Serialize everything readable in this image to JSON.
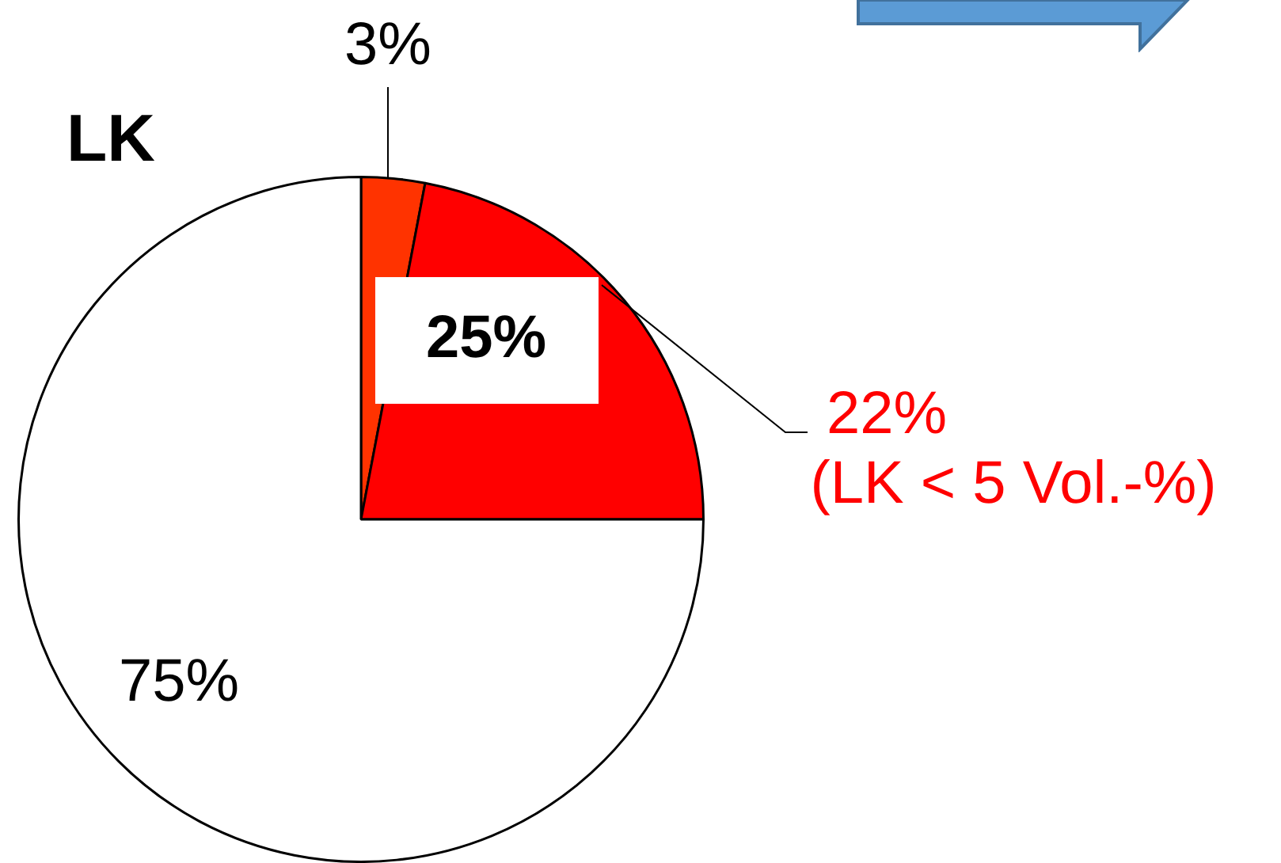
{
  "chart_data": {
    "type": "pie",
    "title": "LK",
    "categories": [
      null,
      null,
      null
    ],
    "values": [
      3,
      22,
      75
    ],
    "colors": [
      "#ff3300",
      "#ff0000",
      "#ffffff"
    ],
    "value_labels": [
      "3%",
      "22%",
      "75%"
    ],
    "annotations": [
      "25%",
      "(LK < 5 Vol.-%)"
    ],
    "legend": false
  }
}
